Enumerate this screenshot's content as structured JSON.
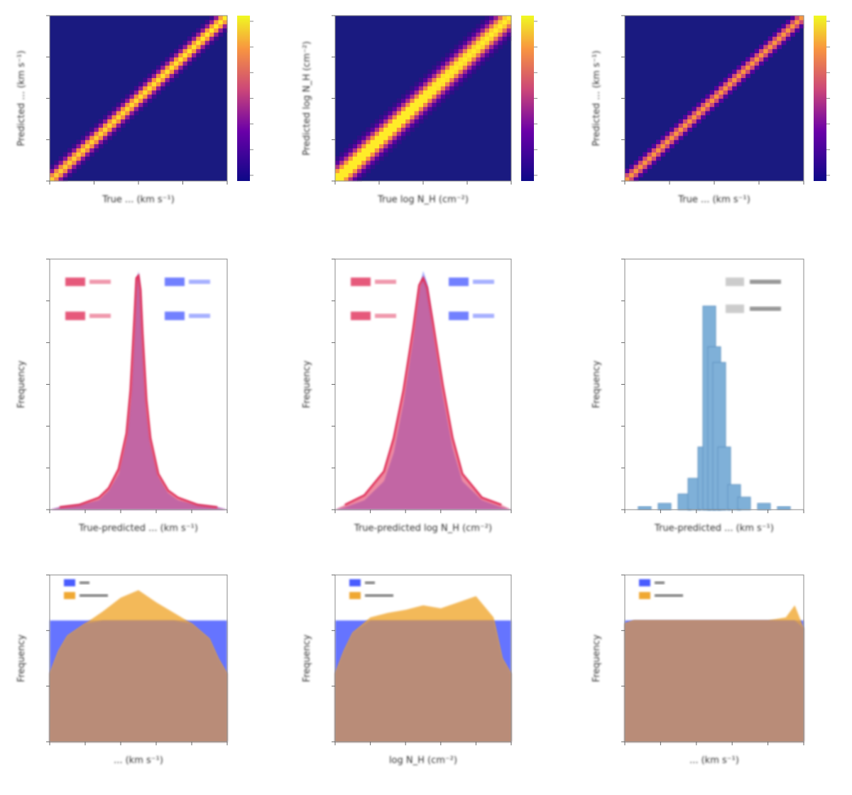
{
  "colors": {
    "heat_low": "#1a1a80",
    "heat_mid": "#c0307a",
    "heat_high": "#ffe030",
    "hist_red": "#e0305a",
    "hist_blue": "#5060ff",
    "hist_purple": "#b0508f",
    "hist_steel": "#7fb0d8",
    "dist_blue": "#4a5cff",
    "dist_orange": "#f0a830",
    "dist_overlap": "#b98c78"
  },
  "chart_data": [
    {
      "type": "heatmap",
      "panel": "heatmap-1",
      "xlabel": "True ... (km s⁻¹)",
      "ylabel": "Predicted ... (km s⁻¹)",
      "colorbar": {
        "colormap": "plasma"
      },
      "diagonal": {
        "width": 0.06,
        "start_peak": 0.9,
        "end_peak": 1.0
      }
    },
    {
      "type": "heatmap",
      "panel": "heatmap-2",
      "xlabel": "True log N_H (cm⁻²)",
      "ylabel": "Predicted log N_H (cm⁻²)",
      "colorbar": {
        "colormap": "plasma"
      },
      "diagonal": {
        "width": 0.09,
        "start_peak": 1.2,
        "end_peak": 1.0
      }
    },
    {
      "type": "heatmap",
      "panel": "heatmap-3",
      "xlabel": "True ... (km s⁻¹)",
      "ylabel": "Predicted ... (km s⁻¹)",
      "colorbar": {
        "colormap": "plasma"
      },
      "diagonal": {
        "width": 0.05,
        "start_peak": 0.75,
        "end_peak": 0.75
      }
    },
    {
      "type": "area",
      "panel": "residuals-1",
      "xlabel": "True-predicted ... (km s⁻¹)",
      "ylabel": "Frequency",
      "x": [
        -4,
        -3,
        -2,
        -1.5,
        -1,
        -0.6,
        -0.4,
        -0.2,
        -0.1,
        0,
        0.1,
        0.2,
        0.4,
        0.6,
        1,
        1.5,
        2,
        3,
        4
      ],
      "series": [
        {
          "values": [
            0.01,
            0.02,
            0.04,
            0.08,
            0.15,
            0.3,
            0.45,
            0.75,
            0.95,
            1.0,
            0.9,
            0.7,
            0.42,
            0.28,
            0.14,
            0.07,
            0.04,
            0.02,
            0.01
          ]
        },
        {
          "values": [
            0.01,
            0.02,
            0.05,
            0.09,
            0.17,
            0.32,
            0.5,
            0.8,
            0.97,
            0.98,
            0.92,
            0.74,
            0.46,
            0.3,
            0.15,
            0.08,
            0.05,
            0.02,
            0.01
          ]
        }
      ],
      "legend": [
        "",
        "",
        "",
        ""
      ]
    },
    {
      "type": "area",
      "panel": "residuals-2",
      "xlabel": "True-predicted log N_H (cm⁻²)",
      "ylabel": "Frequency",
      "x": [
        -4,
        -3,
        -2,
        -1.5,
        -1,
        -0.5,
        -0.2,
        0,
        0.2,
        0.5,
        1,
        1.5,
        2,
        3,
        4
      ],
      "series": [
        {
          "values": [
            0.01,
            0.04,
            0.12,
            0.24,
            0.45,
            0.72,
            0.92,
            1.0,
            0.95,
            0.76,
            0.48,
            0.26,
            0.12,
            0.04,
            0.01
          ]
        },
        {
          "values": [
            0.02,
            0.06,
            0.16,
            0.3,
            0.5,
            0.76,
            0.94,
            0.97,
            0.93,
            0.78,
            0.52,
            0.3,
            0.15,
            0.05,
            0.02
          ]
        }
      ],
      "legend": [
        "",
        "",
        "",
        ""
      ]
    },
    {
      "type": "bar",
      "panel": "residuals-3",
      "xlabel": "True-predicted ... (km s⁻¹)",
      "ylabel": "Frequency",
      "x": [
        -3.5,
        -2.5,
        -1.5,
        -1.0,
        -0.5,
        -0.25,
        0,
        0.25,
        0.5,
        1.0,
        1.5,
        2.5,
        3.5
      ],
      "values": [
        0.01,
        0.02,
        0.05,
        0.1,
        0.2,
        0.65,
        0.52,
        0.47,
        0.2,
        0.08,
        0.04,
        0.02,
        0.01
      ],
      "legend": [
        "",
        ""
      ]
    },
    {
      "type": "area",
      "panel": "distribution-1",
      "xlabel": "... (km s⁻¹)",
      "ylabel": "Frequency",
      "x": [
        0,
        0.05,
        0.1,
        0.2,
        0.3,
        0.4,
        0.5,
        0.6,
        0.7,
        0.8,
        0.9,
        0.95,
        1
      ],
      "series": [
        {
          "values": [
            0.8,
            0.8,
            0.8,
            0.8,
            0.8,
            0.8,
            0.8,
            0.8,
            0.8,
            0.8,
            0.8,
            0.8,
            0.8
          ]
        },
        {
          "values": [
            0.45,
            0.6,
            0.7,
            0.78,
            0.86,
            0.95,
            1.0,
            0.92,
            0.85,
            0.78,
            0.68,
            0.55,
            0.45
          ]
        }
      ],
      "legend": [
        "",
        ""
      ]
    },
    {
      "type": "area",
      "panel": "distribution-2",
      "xlabel": "log N_H (cm⁻²)",
      "ylabel": "Frequency",
      "x": [
        0,
        0.05,
        0.1,
        0.2,
        0.3,
        0.4,
        0.5,
        0.6,
        0.7,
        0.8,
        0.9,
        0.95,
        1
      ],
      "series": [
        {
          "values": [
            0.8,
            0.8,
            0.8,
            0.8,
            0.8,
            0.8,
            0.8,
            0.8,
            0.8,
            0.8,
            0.8,
            0.8,
            0.8
          ]
        },
        {
          "values": [
            0.45,
            0.6,
            0.72,
            0.82,
            0.85,
            0.87,
            0.9,
            0.88,
            0.92,
            0.96,
            0.82,
            0.55,
            0.45
          ]
        }
      ],
      "legend": [
        "",
        ""
      ]
    },
    {
      "type": "area",
      "panel": "distribution-3",
      "xlabel": "... (km s⁻¹)",
      "ylabel": "Frequency",
      "x": [
        0,
        0.05,
        0.1,
        0.2,
        0.3,
        0.4,
        0.5,
        0.6,
        0.7,
        0.8,
        0.9,
        0.95,
        1
      ],
      "series": [
        {
          "values": [
            0.8,
            0.8,
            0.8,
            0.8,
            0.8,
            0.8,
            0.8,
            0.8,
            0.8,
            0.8,
            0.8,
            0.8,
            0.8
          ]
        },
        {
          "values": [
            0.78,
            0.8,
            0.8,
            0.8,
            0.8,
            0.8,
            0.8,
            0.8,
            0.8,
            0.8,
            0.82,
            0.9,
            0.75
          ]
        }
      ],
      "legend": [
        "",
        ""
      ]
    }
  ]
}
